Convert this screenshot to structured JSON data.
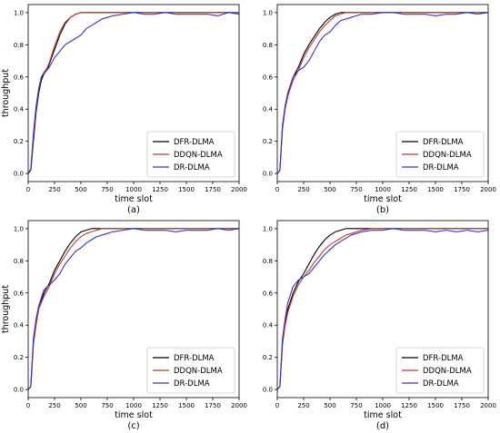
{
  "chart_data": [
    {
      "type": "line",
      "caption": "(a)",
      "xlabel": "time slot",
      "ylabel": "throughput",
      "xlim": [
        0,
        2000
      ],
      "ylim": [
        -0.05,
        1.05
      ],
      "xticks": [
        0,
        250,
        500,
        750,
        1000,
        1250,
        1500,
        1750,
        2000
      ],
      "yticks": [
        0.0,
        0.2,
        0.4,
        0.6,
        0.8,
        1.0
      ],
      "grid": false,
      "legend_position": "bottom-right",
      "series": [
        {
          "name": "DFR-DLMA",
          "color": "#000000",
          "x": [
            0,
            25,
            50,
            75,
            100,
            125,
            150,
            175,
            200,
            250,
            300,
            350,
            400,
            450,
            500,
            550,
            600,
            700,
            800,
            900,
            1000,
            1200,
            1400,
            1600,
            1800,
            1900,
            2000
          ],
          "y": [
            0.0,
            0.02,
            0.2,
            0.38,
            0.5,
            0.58,
            0.62,
            0.64,
            0.68,
            0.77,
            0.86,
            0.93,
            0.97,
            0.99,
            1.0,
            1.0,
            1.0,
            1.0,
            1.0,
            1.0,
            1.0,
            1.0,
            1.0,
            1.0,
            1.0,
            1.0,
            1.0
          ]
        },
        {
          "name": "DDQN-DLMA",
          "color": "#c0392b",
          "x": [
            0,
            25,
            50,
            75,
            100,
            125,
            150,
            175,
            200,
            250,
            300,
            350,
            400,
            450,
            500,
            550,
            600,
            700,
            800,
            900,
            1000,
            1200,
            1400,
            1600,
            1800,
            1900,
            2000
          ],
          "y": [
            0.0,
            0.02,
            0.22,
            0.4,
            0.52,
            0.6,
            0.63,
            0.65,
            0.69,
            0.79,
            0.88,
            0.94,
            0.97,
            0.99,
            1.0,
            1.0,
            1.0,
            1.0,
            1.0,
            1.0,
            1.0,
            1.0,
            1.0,
            1.0,
            1.0,
            1.0,
            1.0
          ]
        },
        {
          "name": "DR-DLMA",
          "color": "#3333cc",
          "x": [
            0,
            25,
            50,
            75,
            100,
            125,
            150,
            175,
            200,
            250,
            300,
            350,
            400,
            450,
            500,
            550,
            600,
            650,
            700,
            750,
            800,
            900,
            1000,
            1100,
            1200,
            1300,
            1400,
            1500,
            1600,
            1700,
            1800,
            1900,
            2000
          ],
          "y": [
            0.0,
            0.03,
            0.25,
            0.42,
            0.53,
            0.6,
            0.62,
            0.64,
            0.66,
            0.72,
            0.76,
            0.8,
            0.82,
            0.84,
            0.86,
            0.9,
            0.92,
            0.94,
            0.96,
            0.97,
            0.98,
            0.99,
            1.0,
            0.99,
            0.99,
            1.0,
            0.99,
            0.99,
            0.99,
            0.99,
            0.98,
            1.0,
            0.99
          ]
        }
      ]
    },
    {
      "type": "line",
      "caption": "(b)",
      "xlabel": "time slot",
      "ylabel": "",
      "xlim": [
        0,
        2000
      ],
      "ylim": [
        -0.05,
        1.05
      ],
      "xticks": [
        0,
        250,
        500,
        750,
        1000,
        1250,
        1500,
        1750,
        2000
      ],
      "yticks": [
        0.0,
        0.2,
        0.4,
        0.6,
        0.8,
        1.0
      ],
      "grid": false,
      "legend_position": "bottom-right",
      "series": [
        {
          "name": "DFR-DLMA",
          "color": "#000000",
          "x": [
            0,
            25,
            50,
            75,
            100,
            150,
            200,
            250,
            300,
            350,
            400,
            450,
            500,
            550,
            600,
            650,
            700,
            800,
            900,
            1000,
            1200,
            1400,
            1600,
            1800,
            2000
          ],
          "y": [
            0.0,
            0.02,
            0.3,
            0.42,
            0.5,
            0.6,
            0.66,
            0.74,
            0.8,
            0.85,
            0.9,
            0.94,
            0.97,
            0.99,
            1.0,
            1.0,
            1.0,
            1.0,
            1.0,
            1.0,
            1.0,
            1.0,
            1.0,
            1.0,
            1.0
          ]
        },
        {
          "name": "DDQN-DLMA",
          "color": "#c0392b",
          "x": [
            0,
            25,
            50,
            75,
            100,
            150,
            200,
            250,
            300,
            350,
            400,
            450,
            500,
            550,
            600,
            650,
            700,
            800,
            900,
            1000,
            1200,
            1400,
            1600,
            1800,
            2000
          ],
          "y": [
            0.0,
            0.02,
            0.28,
            0.4,
            0.48,
            0.58,
            0.64,
            0.72,
            0.78,
            0.83,
            0.88,
            0.92,
            0.95,
            0.98,
            0.99,
            1.0,
            1.0,
            1.0,
            1.0,
            1.0,
            1.0,
            1.0,
            1.0,
            1.0,
            1.0
          ]
        },
        {
          "name": "DR-DLMA",
          "color": "#3333cc",
          "x": [
            0,
            25,
            50,
            75,
            100,
            150,
            200,
            250,
            300,
            350,
            400,
            450,
            500,
            550,
            600,
            650,
            700,
            750,
            800,
            900,
            1000,
            1100,
            1200,
            1300,
            1400,
            1500,
            1600,
            1700,
            1800,
            1900,
            2000
          ],
          "y": [
            0.0,
            0.02,
            0.3,
            0.42,
            0.5,
            0.6,
            0.64,
            0.66,
            0.7,
            0.76,
            0.82,
            0.86,
            0.88,
            0.92,
            0.95,
            0.96,
            0.97,
            0.98,
            0.99,
            0.99,
            1.0,
            1.0,
            0.99,
            0.99,
            0.99,
            0.98,
            0.99,
            0.99,
            1.0,
            0.99,
            1.0
          ]
        }
      ]
    },
    {
      "type": "line",
      "caption": "(c)",
      "xlabel": "time slot",
      "ylabel": "throughput",
      "xlim": [
        0,
        2000
      ],
      "ylim": [
        -0.05,
        1.05
      ],
      "xticks": [
        0,
        250,
        500,
        750,
        1000,
        1250,
        1500,
        1750,
        2000
      ],
      "yticks": [
        0.0,
        0.2,
        0.4,
        0.6,
        0.8,
        1.0
      ],
      "grid": false,
      "legend_position": "bottom-right",
      "series": [
        {
          "name": "DFR-DLMA",
          "color": "#000000",
          "x": [
            0,
            25,
            50,
            75,
            100,
            150,
            200,
            250,
            300,
            350,
            400,
            450,
            500,
            550,
            600,
            700,
            800,
            900,
            1000,
            1200,
            1400,
            1600,
            1800,
            2000
          ],
          "y": [
            0.0,
            0.02,
            0.3,
            0.42,
            0.5,
            0.6,
            0.66,
            0.74,
            0.8,
            0.86,
            0.91,
            0.95,
            0.98,
            0.99,
            1.0,
            1.0,
            1.0,
            1.0,
            1.0,
            1.0,
            1.0,
            1.0,
            1.0,
            1.0
          ]
        },
        {
          "name": "DDQN-DLMA",
          "color": "#c0392b",
          "x": [
            0,
            25,
            50,
            75,
            100,
            150,
            200,
            250,
            300,
            350,
            400,
            450,
            500,
            550,
            600,
            650,
            700,
            800,
            900,
            1000,
            1200,
            1400,
            1600,
            1800,
            2000
          ],
          "y": [
            0.0,
            0.02,
            0.28,
            0.4,
            0.5,
            0.58,
            0.64,
            0.72,
            0.78,
            0.83,
            0.88,
            0.92,
            0.95,
            0.97,
            0.98,
            0.99,
            1.0,
            1.0,
            1.0,
            1.0,
            1.0,
            1.0,
            1.0,
            1.0,
            1.0
          ]
        },
        {
          "name": "DR-DLMA",
          "color": "#3333cc",
          "x": [
            0,
            25,
            50,
            75,
            100,
            150,
            200,
            250,
            300,
            350,
            400,
            450,
            500,
            550,
            600,
            650,
            700,
            750,
            800,
            900,
            1000,
            1100,
            1200,
            1300,
            1400,
            1500,
            1600,
            1700,
            1800,
            1900,
            2000
          ],
          "y": [
            0.0,
            0.02,
            0.32,
            0.44,
            0.52,
            0.62,
            0.65,
            0.68,
            0.72,
            0.78,
            0.82,
            0.86,
            0.88,
            0.91,
            0.93,
            0.95,
            0.96,
            0.97,
            0.98,
            0.99,
            1.0,
            0.99,
            0.99,
            0.99,
            0.98,
            0.99,
            0.99,
            0.99,
            1.0,
            0.99,
            1.0
          ]
        }
      ]
    },
    {
      "type": "line",
      "caption": "(d)",
      "xlabel": "time slot",
      "ylabel": "",
      "xlim": [
        0,
        2000
      ],
      "ylim": [
        -0.05,
        1.05
      ],
      "xticks": [
        0,
        250,
        500,
        750,
        1000,
        1250,
        1500,
        1750,
        2000
      ],
      "yticks": [
        0.0,
        0.2,
        0.4,
        0.6,
        0.8,
        1.0
      ],
      "grid": false,
      "legend_position": "bottom-right",
      "series": [
        {
          "name": "DFR-DLMA",
          "color": "#000000",
          "x": [
            0,
            25,
            50,
            75,
            100,
            150,
            200,
            250,
            300,
            350,
            400,
            450,
            500,
            550,
            600,
            650,
            700,
            800,
            900,
            1000,
            1200,
            1400,
            1600,
            1800,
            2000
          ],
          "y": [
            0.0,
            0.02,
            0.3,
            0.42,
            0.5,
            0.6,
            0.67,
            0.72,
            0.78,
            0.84,
            0.89,
            0.93,
            0.96,
            0.98,
            0.99,
            1.0,
            1.0,
            1.0,
            1.0,
            1.0,
            1.0,
            1.0,
            1.0,
            1.0,
            1.0
          ]
        },
        {
          "name": "DDQN-DLMA",
          "color": "#c0392b",
          "x": [
            0,
            25,
            50,
            75,
            100,
            150,
            200,
            250,
            300,
            350,
            400,
            450,
            500,
            550,
            600,
            650,
            700,
            750,
            800,
            900,
            1000,
            1200,
            1400,
            1600,
            1800,
            2000
          ],
          "y": [
            0.0,
            0.02,
            0.28,
            0.4,
            0.48,
            0.58,
            0.65,
            0.7,
            0.74,
            0.79,
            0.83,
            0.87,
            0.9,
            0.92,
            0.94,
            0.96,
            0.97,
            0.98,
            0.99,
            1.0,
            1.0,
            1.0,
            1.0,
            1.0,
            1.0,
            1.0
          ]
        },
        {
          "name": "DR-DLMA",
          "color": "#3333cc",
          "x": [
            0,
            25,
            50,
            75,
            100,
            150,
            200,
            250,
            300,
            350,
            400,
            450,
            500,
            550,
            600,
            650,
            700,
            750,
            800,
            900,
            1000,
            1100,
            1200,
            1300,
            1400,
            1500,
            1600,
            1700,
            1800,
            1900,
            2000
          ],
          "y": [
            0.0,
            0.02,
            0.32,
            0.44,
            0.54,
            0.64,
            0.68,
            0.7,
            0.72,
            0.76,
            0.8,
            0.84,
            0.87,
            0.9,
            0.92,
            0.94,
            0.96,
            0.97,
            0.98,
            0.99,
            0.99,
            1.0,
            0.99,
            0.99,
            0.99,
            0.98,
            0.99,
            0.98,
            0.99,
            0.98,
            0.99
          ]
        }
      ]
    }
  ]
}
